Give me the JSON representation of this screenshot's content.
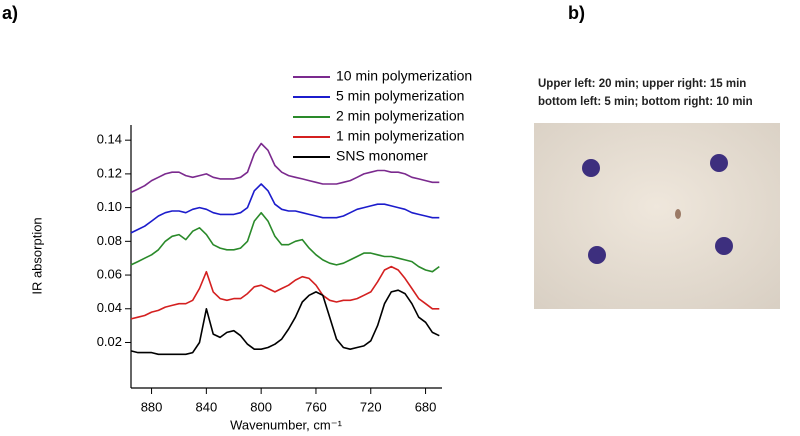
{
  "panel_labels": [
    "a)",
    "b)"
  ],
  "chart_data": {
    "type": "line",
    "y_label": "IR absorption",
    "x_label": "Wavenumber, cm⁻¹",
    "x": [
      895,
      890,
      885,
      880,
      875,
      870,
      865,
      860,
      855,
      850,
      845,
      840,
      835,
      830,
      825,
      820,
      815,
      810,
      805,
      800,
      795,
      790,
      785,
      780,
      775,
      770,
      765,
      760,
      755,
      750,
      745,
      740,
      735,
      730,
      725,
      720,
      715,
      710,
      705,
      700,
      695,
      690,
      685,
      680,
      675,
      670
    ],
    "xlim": [
      895,
      668
    ],
    "xticks": [
      880,
      840,
      800,
      760,
      720,
      680
    ],
    "ylim": [
      -0.007,
      0.149
    ],
    "yticks": [
      0.02,
      0.04,
      0.06,
      0.08,
      {
        "value": 0.1,
        "label": "0.10"
      },
      0.12,
      0.14
    ],
    "series": [
      {
        "name": "10 min polymerization",
        "color": "#7b2a8e",
        "values": [
          0.109,
          0.111,
          0.113,
          0.116,
          0.118,
          0.12,
          0.121,
          0.121,
          0.119,
          0.118,
          0.119,
          0.12,
          0.118,
          0.117,
          0.117,
          0.117,
          0.118,
          0.121,
          0.132,
          0.138,
          0.134,
          0.125,
          0.121,
          0.119,
          0.118,
          0.117,
          0.116,
          0.115,
          0.114,
          0.114,
          0.114,
          0.115,
          0.116,
          0.118,
          0.12,
          0.121,
          0.122,
          0.122,
          0.121,
          0.121,
          0.12,
          0.118,
          0.117,
          0.116,
          0.115,
          0.115
        ]
      },
      {
        "name": "5 min polymerization",
        "color": "#1c1ccc",
        "values": [
          0.085,
          0.087,
          0.089,
          0.092,
          0.095,
          0.097,
          0.098,
          0.098,
          0.097,
          0.099,
          0.1,
          0.099,
          0.097,
          0.096,
          0.096,
          0.096,
          0.097,
          0.1,
          0.11,
          0.114,
          0.11,
          0.102,
          0.099,
          0.098,
          0.098,
          0.097,
          0.096,
          0.095,
          0.094,
          0.094,
          0.094,
          0.095,
          0.097,
          0.099,
          0.1,
          0.101,
          0.102,
          0.102,
          0.101,
          0.1,
          0.099,
          0.097,
          0.096,
          0.095,
          0.094,
          0.094
        ]
      },
      {
        "name": "2 min polymerization",
        "color": "#2a8a2a",
        "values": [
          0.066,
          0.068,
          0.07,
          0.072,
          0.075,
          0.08,
          0.083,
          0.084,
          0.081,
          0.086,
          0.088,
          0.084,
          0.078,
          0.076,
          0.075,
          0.075,
          0.076,
          0.08,
          0.092,
          0.097,
          0.092,
          0.083,
          0.078,
          0.078,
          0.08,
          0.081,
          0.076,
          0.072,
          0.069,
          0.067,
          0.066,
          0.067,
          0.069,
          0.071,
          0.073,
          0.073,
          0.072,
          0.071,
          0.071,
          0.07,
          0.069,
          0.068,
          0.065,
          0.063,
          0.062,
          0.065
        ]
      },
      {
        "name": "1 min polymerization",
        "color": "#d42020",
        "values": [
          0.034,
          0.035,
          0.036,
          0.038,
          0.039,
          0.041,
          0.042,
          0.043,
          0.043,
          0.045,
          0.052,
          0.062,
          0.05,
          0.046,
          0.045,
          0.046,
          0.046,
          0.049,
          0.053,
          0.054,
          0.052,
          0.05,
          0.052,
          0.054,
          0.057,
          0.059,
          0.058,
          0.054,
          0.048,
          0.045,
          0.044,
          0.045,
          0.045,
          0.046,
          0.048,
          0.05,
          0.056,
          0.063,
          0.065,
          0.063,
          0.058,
          0.052,
          0.046,
          0.043,
          0.04,
          0.04
        ]
      },
      {
        "name": "SNS monomer",
        "color": "#000000",
        "values": [
          0.015,
          0.014,
          0.014,
          0.014,
          0.013,
          0.013,
          0.013,
          0.013,
          0.013,
          0.014,
          0.02,
          0.04,
          0.025,
          0.023,
          0.026,
          0.027,
          0.024,
          0.019,
          0.016,
          0.016,
          0.017,
          0.019,
          0.022,
          0.028,
          0.035,
          0.044,
          0.048,
          0.05,
          0.048,
          0.035,
          0.022,
          0.017,
          0.016,
          0.017,
          0.018,
          0.021,
          0.03,
          0.043,
          0.05,
          0.051,
          0.049,
          0.043,
          0.035,
          0.032,
          0.026,
          0.024
        ]
      }
    ]
  },
  "photo": {
    "caption": [
      "Upper left: 20 min; upper right: 15 min",
      "bottom left: 5 min; bottom right: 10 min"
    ]
  }
}
